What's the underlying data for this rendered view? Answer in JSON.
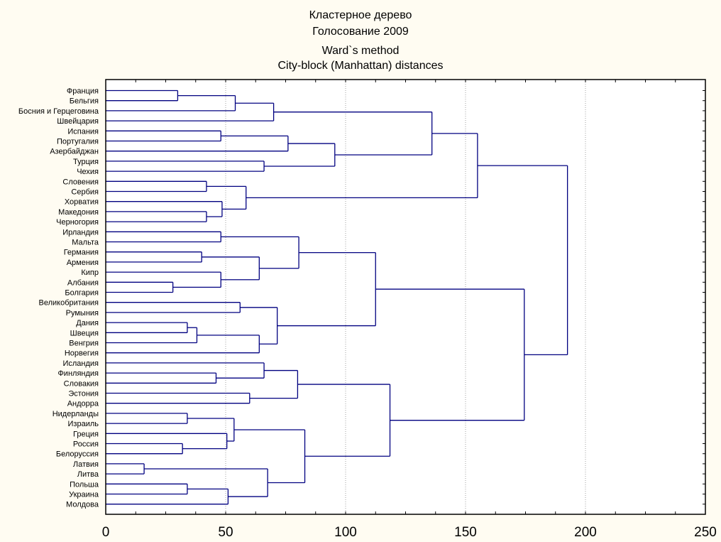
{
  "chart_data": {
    "type": "dendrogram",
    "title": "Кластерное дерево",
    "subtitle": "Голосование 2009",
    "method": "Ward`s method",
    "distance": "City-block (Manhattan) distances",
    "xlabel": "",
    "ylabel": "",
    "xlim": [
      0,
      250
    ],
    "xticks": [
      0,
      50,
      100,
      150,
      200,
      250
    ],
    "grid": "vertical dotted",
    "line_color": "#000080",
    "leaves": [
      "Франция",
      "Бельгия",
      "Босния и Герцеговина",
      "Швейцария",
      "Испания",
      "Португалия",
      "Азербайджан",
      "Турция",
      "Чехия",
      "Словения",
      "Сербия",
      "Хорватия",
      "Македония",
      "Черногория",
      "Ирландия",
      "Мальта",
      "Германия",
      "Армения",
      "Кипр",
      "Албания",
      "Болгария",
      "Великобритания",
      "Румыния",
      "Дания",
      "Швеция",
      "Венгрия",
      "Норвегия",
      "Исландия",
      "Финляндия",
      "Словакия",
      "Эстония",
      "Андорра",
      "Нидерланды",
      "Израиль",
      "Греция",
      "Россия",
      "Белоруссия",
      "Латвия",
      "Литва",
      "Польша",
      "Украина",
      "Молдова"
    ],
    "tree": {
      "h": 192.5,
      "c": [
        {
          "h": 155,
          "c": [
            {
              "h": 136,
              "c": [
                {
                  "h": 70,
                  "c": [
                    {
                      "h": 54,
                      "c": [
                        {
                          "h": 30,
                          "c": [
                            0,
                            1
                          ]
                        },
                        2
                      ]
                    },
                    3
                  ]
                },
                {
                  "h": 95.5,
                  "c": [
                    {
                      "h": 76,
                      "c": [
                        {
                          "h": 48,
                          "c": [
                            4,
                            5
                          ]
                        },
                        6
                      ]
                    },
                    {
                      "h": 66,
                      "c": [
                        7,
                        8
                      ]
                    }
                  ]
                }
              ]
            },
            {
              "h": 58.5,
              "c": [
                {
                  "h": 42,
                  "c": [
                    9,
                    10
                  ]
                },
                {
                  "h": 48.5,
                  "c": [
                    11,
                    {
                      "h": 42,
                      "c": [
                        12,
                        13
                      ]
                    }
                  ]
                }
              ]
            }
          ]
        },
        {
          "h": 174.5,
          "c": [
            {
              "h": 112.5,
              "c": [
                {
                  "h": 80.5,
                  "c": [
                    {
                      "h": 48,
                      "c": [
                        14,
                        15
                      ]
                    },
                    {
                      "h": 64,
                      "c": [
                        {
                          "h": 40,
                          "c": [
                            16,
                            17
                          ]
                        },
                        {
                          "h": 48,
                          "c": [
                            18,
                            {
                              "h": 28,
                              "c": [
                                19,
                                20
                              ]
                            }
                          ]
                        }
                      ]
                    }
                  ]
                },
                {
                  "h": 71.5,
                  "c": [
                    {
                      "h": 56,
                      "c": [
                        21,
                        22
                      ]
                    },
                    {
                      "h": 64,
                      "c": [
                        {
                          "h": 38,
                          "c": [
                            {
                              "h": 34,
                              "c": [
                                23,
                                24
                              ]
                            },
                            25
                          ]
                        },
                        26
                      ]
                    }
                  ]
                }
              ]
            },
            {
              "h": 118.5,
              "c": [
                {
                  "h": 80,
                  "c": [
                    {
                      "h": 66,
                      "c": [
                        27,
                        {
                          "h": 46,
                          "c": [
                            28,
                            29
                          ]
                        }
                      ]
                    },
                    {
                      "h": 60,
                      "c": [
                        30,
                        31
                      ]
                    }
                  ]
                },
                {
                  "h": 83,
                  "c": [
                    {
                      "h": 53.5,
                      "c": [
                        {
                          "h": 34,
                          "c": [
                            32,
                            33
                          ]
                        },
                        {
                          "h": 50.5,
                          "c": [
                            34,
                            {
                              "h": 32,
                              "c": [
                                35,
                                36
                              ]
                            }
                          ]
                        }
                      ]
                    },
                    {
                      "h": 67.5,
                      "c": [
                        {
                          "h": 16,
                          "c": [
                            37,
                            38
                          ]
                        },
                        {
                          "h": 51,
                          "c": [
                            {
                              "h": 34,
                              "c": [
                                39,
                                40
                              ]
                            },
                            41
                          ]
                        }
                      ]
                    }
                  ]
                }
              ]
            }
          ]
        }
      ]
    }
  }
}
